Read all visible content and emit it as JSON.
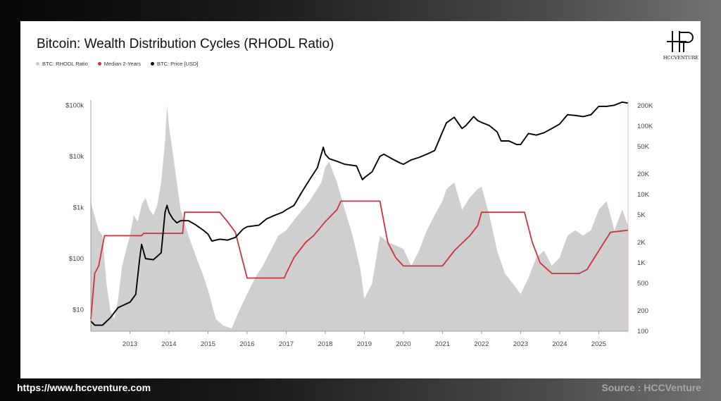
{
  "footer": {
    "url": "https://www.hccventure.com",
    "source": "Source : HCCVenture"
  },
  "brand": {
    "logo_text": "HCCVENTURE"
  },
  "colors": {
    "ratio_fill": "#cfcfcf",
    "median": "#d0313f",
    "price": "#000000"
  },
  "chart_data": {
    "type": "area",
    "title": "Bitcoin: Wealth Distribution Cycles (RHODL Ratio)",
    "legend": [
      {
        "label": "BTC: RHODL Ratio",
        "color": "#c8c8c8"
      },
      {
        "label": "Median 2-Years",
        "color": "#d0313f"
      },
      {
        "label": "BTC: Price [USD]",
        "color": "#000000"
      }
    ],
    "legend_position": "top-left",
    "x_ticks": [
      "2013",
      "2014",
      "2015",
      "2016",
      "2017",
      "2018",
      "2019",
      "2020",
      "2021",
      "2022",
      "2023",
      "2024",
      "2025"
    ],
    "xlim": [
      2012.0,
      2025.75
    ],
    "left_axis": {
      "label": "",
      "scale": "log",
      "ticks": [
        "$10",
        "$100",
        "$1k",
        "$10k",
        "$100k"
      ],
      "tick_values": [
        10,
        100,
        1000,
        10000,
        100000
      ]
    },
    "right_axis": {
      "label": "",
      "scale": "log",
      "ticks": [
        "100",
        "200",
        "500",
        "1K",
        "2K",
        "5K",
        "10K",
        "20K",
        "50K",
        "100K",
        "200K"
      ],
      "tick_values": [
        100,
        200,
        500,
        1000,
        2000,
        5000,
        10000,
        20000,
        50000,
        100000,
        200000
      ],
      "ylim": [
        100,
        200000
      ]
    },
    "grid": false,
    "series": [
      {
        "name": "BTC: RHODL Ratio",
        "kind": "area",
        "axis": "right",
        "x": [
          2012.0,
          2012.05,
          2012.2,
          2012.3,
          2012.4,
          2012.5,
          2012.6,
          2012.7,
          2012.8,
          2012.9,
          2013.0,
          2013.1,
          2013.2,
          2013.3,
          2013.4,
          2013.5,
          2013.6,
          2013.7,
          2013.8,
          2013.9,
          2013.95,
          2014.0,
          2014.1,
          2014.2,
          2014.3,
          2014.5,
          2014.7,
          2014.9,
          2015.0,
          2015.2,
          2015.4,
          2015.6,
          2015.8,
          2016.0,
          2016.2,
          2016.4,
          2016.6,
          2016.8,
          2017.0,
          2017.3,
          2017.6,
          2017.9,
          2018.0,
          2018.1,
          2018.3,
          2018.5,
          2018.7,
          2018.9,
          2019.0,
          2019.2,
          2019.4,
          2019.6,
          2019.8,
          2020.0,
          2020.2,
          2020.4,
          2020.6,
          2020.8,
          2021.0,
          2021.1,
          2021.3,
          2021.5,
          2021.7,
          2021.9,
          2022.0,
          2022.2,
          2022.4,
          2022.6,
          2022.8,
          2023.0,
          2023.2,
          2023.4,
          2023.6,
          2023.8,
          2024.0,
          2024.2,
          2024.4,
          2024.6,
          2024.8,
          2025.0,
          2025.2,
          2025.4,
          2025.6,
          2025.75
        ],
        "y": [
          8000,
          6000,
          3000,
          2500,
          500,
          200,
          150,
          300,
          900,
          1500,
          2500,
          5000,
          4000,
          7000,
          9000,
          6000,
          5000,
          7000,
          15000,
          60000,
          200000,
          100000,
          40000,
          15000,
          6000,
          2500,
          1200,
          600,
          400,
          150,
          120,
          110,
          200,
          350,
          600,
          900,
          1500,
          2500,
          3000,
          5000,
          8000,
          15000,
          25000,
          30000,
          15000,
          6000,
          2500,
          800,
          300,
          500,
          2500,
          2000,
          1800,
          1600,
          900,
          1500,
          3000,
          5000,
          8000,
          12000,
          15000,
          6000,
          9000,
          12000,
          13000,
          5000,
          1500,
          700,
          500,
          350,
          600,
          1200,
          1500,
          900,
          1200,
          2500,
          3000,
          2500,
          3000,
          6000,
          8000,
          3000,
          6000,
          3500
        ]
      },
      {
        "name": "Median 2-Years",
        "kind": "line",
        "axis": "right",
        "x": [
          2012.0,
          2012.1,
          2012.2,
          2012.35,
          2013.3,
          2013.35,
          2014.35,
          2014.4,
          2015.3,
          2015.5,
          2015.7,
          2015.9,
          2016.0,
          2016.95,
          2017.0,
          2017.2,
          2017.5,
          2017.7,
          2018.0,
          2018.3,
          2018.4,
          2019.4,
          2019.6,
          2019.8,
          2020.0,
          2021.0,
          2021.3,
          2021.7,
          2021.9,
          2022.0,
          2023.1,
          2023.3,
          2023.5,
          2023.8,
          2024.5,
          2024.7,
          2025.0,
          2025.3,
          2025.75
        ],
        "y": [
          150,
          700,
          900,
          2500,
          2500,
          2700,
          2700,
          5500,
          5500,
          4000,
          2800,
          1000,
          600,
          600,
          700,
          1200,
          2000,
          2500,
          4000,
          6000,
          8000,
          8000,
          2000,
          1200,
          900,
          900,
          1500,
          2500,
          3500,
          5500,
          5500,
          2000,
          1000,
          700,
          700,
          800,
          1500,
          2800,
          3000
        ]
      },
      {
        "name": "BTC: Price [USD]",
        "kind": "line",
        "axis": "left",
        "x": [
          2012.0,
          2012.1,
          2012.3,
          2012.5,
          2012.7,
          2012.9,
          2013.0,
          2013.15,
          2013.25,
          2013.3,
          2013.4,
          2013.6,
          2013.8,
          2013.9,
          2013.95,
          2014.0,
          2014.1,
          2014.2,
          2014.3,
          2014.5,
          2014.7,
          2014.9,
          2015.0,
          2015.1,
          2015.3,
          2015.5,
          2015.7,
          2015.9,
          2016.0,
          2016.3,
          2016.5,
          2016.7,
          2016.9,
          2017.0,
          2017.2,
          2017.4,
          2017.6,
          2017.8,
          2017.95,
          2018.0,
          2018.1,
          2018.3,
          2018.5,
          2018.8,
          2018.95,
          2019.0,
          2019.2,
          2019.4,
          2019.5,
          2019.7,
          2019.9,
          2020.0,
          2020.2,
          2020.4,
          2020.6,
          2020.8,
          2021.0,
          2021.1,
          2021.3,
          2021.5,
          2021.6,
          2021.8,
          2021.9,
          2022.0,
          2022.2,
          2022.4,
          2022.5,
          2022.7,
          2022.9,
          2023.0,
          2023.2,
          2023.4,
          2023.6,
          2023.8,
          2024.0,
          2024.2,
          2024.4,
          2024.6,
          2024.8,
          2025.0,
          2025.2,
          2025.4,
          2025.6,
          2025.75
        ],
        "y": [
          6,
          5,
          5,
          7,
          11,
          13,
          14,
          20,
          100,
          190,
          100,
          95,
          130,
          800,
          1100,
          800,
          600,
          500,
          550,
          550,
          450,
          350,
          300,
          220,
          240,
          230,
          260,
          380,
          420,
          450,
          600,
          700,
          800,
          900,
          1100,
          2000,
          3500,
          6000,
          15000,
          11000,
          9000,
          8000,
          7000,
          6500,
          3500,
          3800,
          5000,
          10000,
          11000,
          9000,
          7500,
          7000,
          8500,
          9500,
          11000,
          13000,
          30000,
          45000,
          58000,
          35000,
          40000,
          60000,
          50000,
          46000,
          40000,
          30000,
          20000,
          20000,
          17000,
          17000,
          28000,
          26000,
          29000,
          35000,
          43000,
          65000,
          63000,
          60000,
          65000,
          95000,
          95000,
          100000,
          115000,
          110000
        ]
      }
    ]
  }
}
